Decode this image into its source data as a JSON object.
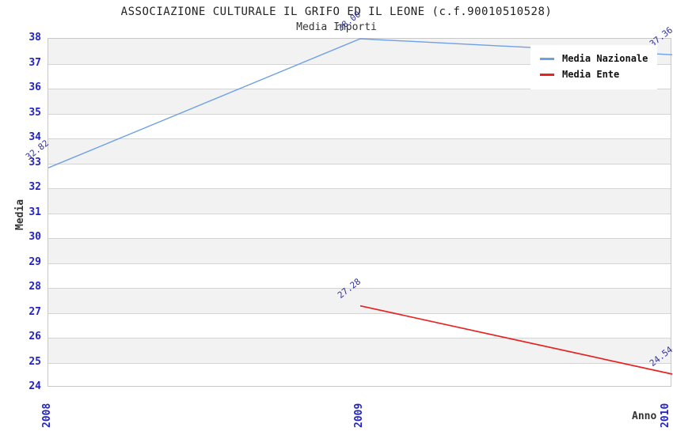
{
  "chart_data": {
    "type": "line",
    "title": "ASSOCIAZIONE CULTURALE IL GRIFO ED IL LEONE (c.f.90010510528)",
    "subtitle": "Media Importi",
    "xlabel": "Anno",
    "ylabel": "Media",
    "x": [
      2008,
      2009,
      2010
    ],
    "ylim": [
      24,
      38
    ],
    "ytick_step": 1,
    "grid": true,
    "band_fill": true,
    "legend_position": "top-right",
    "series": [
      {
        "name": "Media Nazionale",
        "color": "#6EA0E6",
        "points": [
          {
            "x": 2008,
            "y": 32.82,
            "label": "32.82"
          },
          {
            "x": 2009,
            "y": 38.0,
            "label": "38.00"
          },
          {
            "x": 2010,
            "y": 37.36,
            "label": "37.36"
          }
        ]
      },
      {
        "name": "Media Ente",
        "color": "#E62222",
        "points": [
          {
            "x": 2009,
            "y": 27.28,
            "label": "27.28"
          },
          {
            "x": 2010,
            "y": 24.54,
            "label": "24.54"
          }
        ]
      }
    ]
  },
  "colors": {
    "nazionale": "#6EA0E6",
    "ente": "#E62222",
    "tick_label": "#2222CC",
    "value_label": "#333399",
    "band": "#F2F2F2",
    "grid": "#D4D4D4",
    "border": "#C8C8C8",
    "text": "#333333"
  }
}
